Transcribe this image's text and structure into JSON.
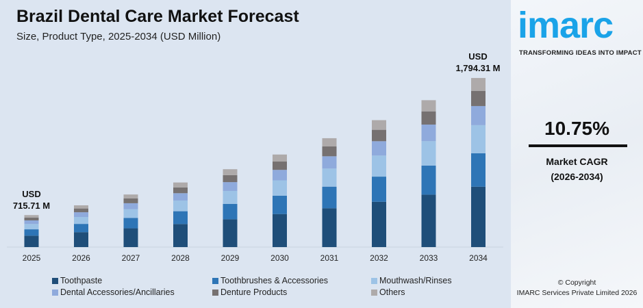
{
  "header": {
    "title": "Brazil Dental Care Market Forecast",
    "subtitle": "Size, Product Type, 2025-2034 (USD Million)"
  },
  "chart_data": {
    "type": "bar",
    "stacked": true,
    "title": "Brazil Dental Care Market Forecast",
    "subtitle": "Size, Product Type, 2025-2034 (USD Million)",
    "categories": [
      "2025",
      "2026",
      "2027",
      "2028",
      "2029",
      "2030",
      "2031",
      "2032",
      "2033",
      "2034"
    ],
    "series": [
      {
        "name": "Toothpaste",
        "color": "#1f4e79",
        "values": [
          255.5,
          283.0,
          313.4,
          347.1,
          384.4,
          425.7,
          471.5,
          522.2,
          578.2,
          640.6
        ]
      },
      {
        "name": "Toothbrushes & Accessories",
        "color": "#2e75b6",
        "values": [
          141.7,
          156.9,
          173.8,
          192.5,
          213.2,
          236.1,
          261.5,
          289.6,
          320.7,
          355.3
        ]
      },
      {
        "name": "Mouthwash/Rinses",
        "color": "#9dc3e6",
        "values": [
          118.8,
          131.6,
          145.7,
          161.4,
          178.7,
          197.9,
          219.2,
          242.8,
          268.9,
          297.9
        ]
      },
      {
        "name": "Dental Accessories/Ancillaries",
        "color": "#8faadc",
        "values": [
          80.9,
          89.6,
          99.2,
          109.9,
          121.7,
          134.7,
          149.2,
          165.3,
          183.0,
          202.8
        ]
      },
      {
        "name": "Denture Products",
        "color": "#767171",
        "values": [
          64.4,
          71.3,
          79.0,
          87.5,
          96.9,
          107.3,
          118.9,
          131.6,
          145.8,
          161.5
        ]
      },
      {
        "name": "Others",
        "color": "#aeaaaa",
        "values": [
          54.4,
          60.2,
          66.7,
          73.9,
          81.8,
          90.6,
          100.4,
          111.2,
          123.1,
          136.4
        ]
      }
    ],
    "annotations": {
      "first": {
        "line1": "USD",
        "line2": "715.71 M"
      },
      "last": {
        "line1": "USD",
        "line2": "1,794.31 M"
      }
    },
    "legend_position": "bottom",
    "grid": false
  },
  "panel": {
    "logo": "imarc",
    "tagline": "TRANSFORMING IDEAS INTO IMPACT",
    "cagr": "10.75%",
    "cagr_label": "Market CAGR",
    "cagr_period": "(2026-2034)",
    "copyright": "© Copyright",
    "company": "IMARC Services Private Limited 2026"
  }
}
